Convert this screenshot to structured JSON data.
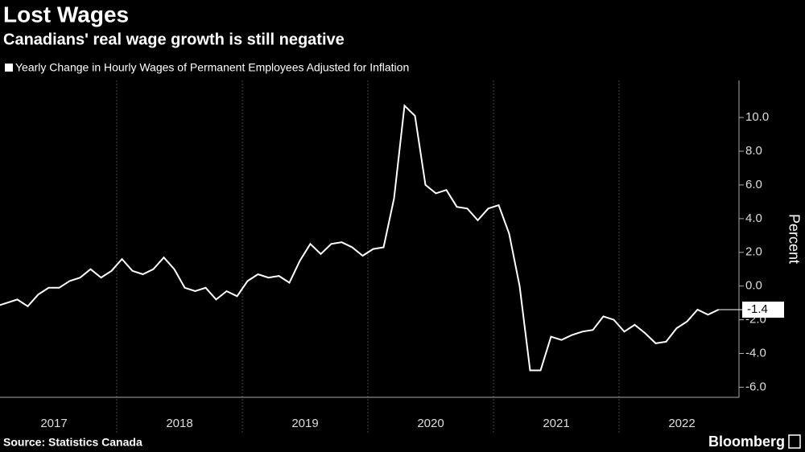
{
  "chart_data": {
    "type": "line",
    "title": "Lost Wages",
    "subtitle": "Canadians' real wage growth is still negative",
    "y_axis_label": "Percent",
    "source": "Source: Statistics Canada",
    "brand": "Bloomberg",
    "years": [
      "2017",
      "2018",
      "2019",
      "2020",
      "2021",
      "2022"
    ],
    "series": [
      {
        "name": "Yearly Change in Hourly Wages of Permanent Employees Adjusted for Inflation",
        "color": "#ffffff",
        "values": [
          -1.2,
          -1.0,
          -0.8,
          -1.2,
          -0.5,
          -0.1,
          -0.1,
          0.3,
          0.5,
          1.0,
          0.5,
          0.9,
          1.6,
          0.9,
          0.7,
          1.0,
          1.7,
          1.0,
          -0.1,
          -0.3,
          -0.1,
          -0.8,
          -0.3,
          -0.6,
          0.3,
          0.7,
          0.5,
          0.6,
          0.2,
          1.5,
          2.5,
          1.9,
          2.5,
          2.6,
          2.3,
          1.8,
          2.2,
          2.3,
          5.2,
          10.7,
          10.1,
          6.0,
          5.5,
          5.7,
          4.7,
          4.6,
          3.9,
          4.6,
          4.8,
          3.1,
          0.0,
          -5.0,
          -5.0,
          -3.0,
          -3.2,
          -2.9,
          -2.7,
          -2.6,
          -1.8,
          -2.0,
          -2.7,
          -2.3,
          -2.8,
          -3.4,
          -3.3,
          -2.5,
          -2.1,
          -1.4,
          -1.7,
          -1.4
        ]
      }
    ],
    "last_label": "-1.4",
    "ylim": [
      -6.6,
      12.2
    ],
    "yticks": [
      {
        "value": -6,
        "label": "-6.0"
      },
      {
        "value": -4,
        "label": "-4.0"
      },
      {
        "value": -2,
        "label": "-2.0"
      },
      {
        "value": 0,
        "label": "0.0"
      },
      {
        "value": 2,
        "label": "2.0"
      },
      {
        "value": 4,
        "label": "4.0"
      },
      {
        "value": 6,
        "label": "6.0"
      },
      {
        "value": 8,
        "label": "8.0"
      },
      {
        "value": 10,
        "label": "10.0"
      }
    ]
  }
}
